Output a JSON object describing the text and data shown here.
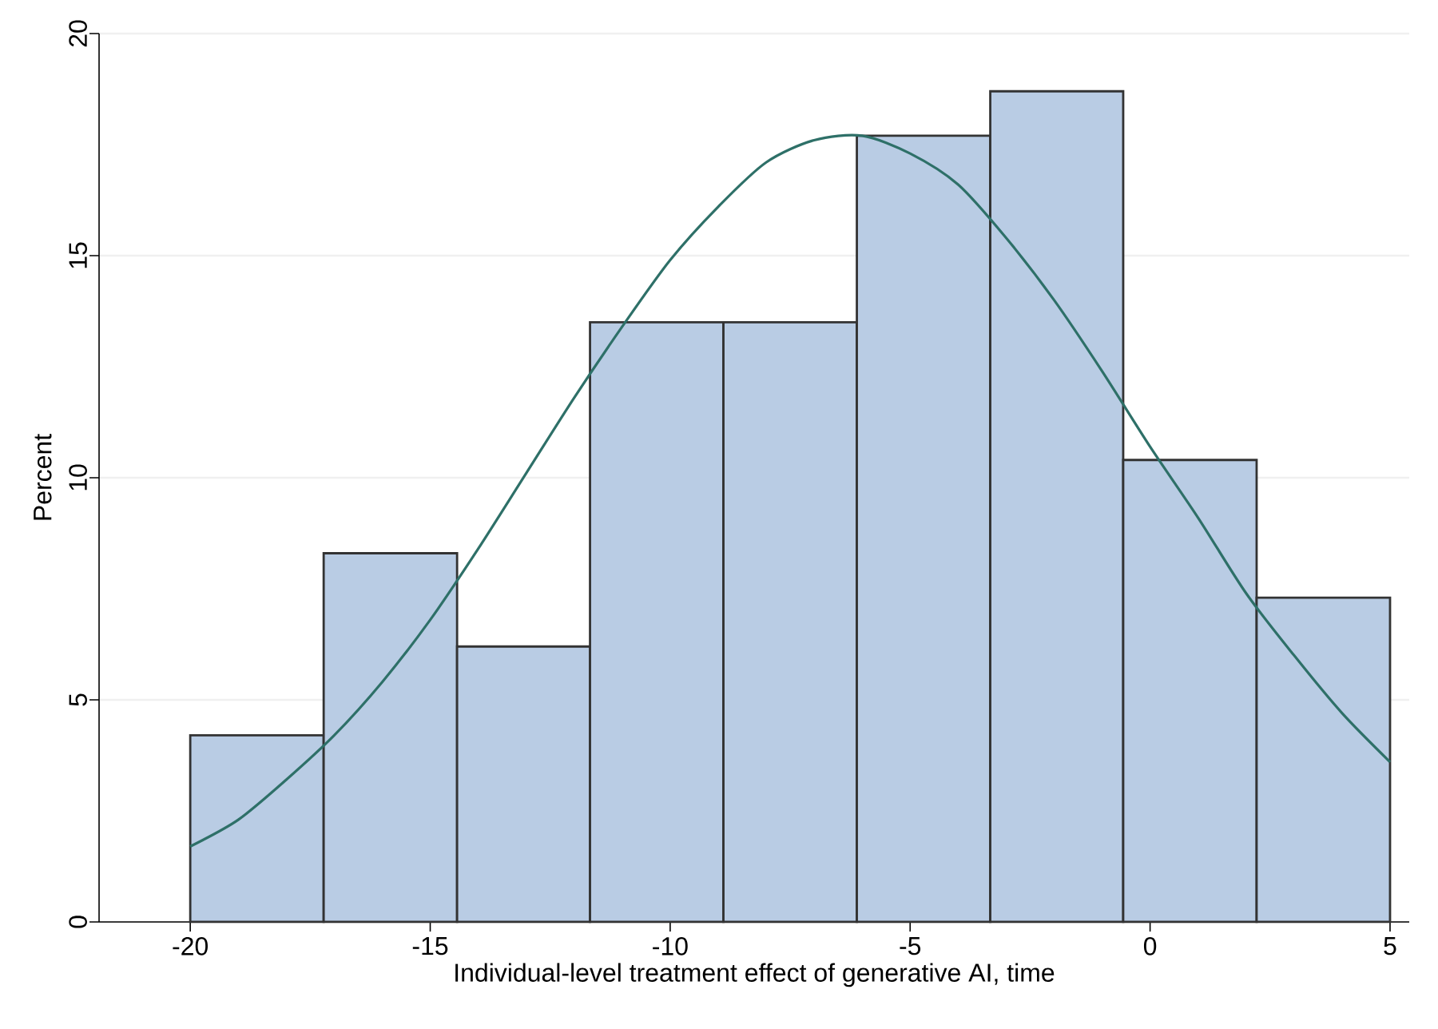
{
  "chart_data": {
    "type": "histogram",
    "xlabel": "Individual-level treatment effect of generative AI, time",
    "ylabel": "Percent",
    "bins": [
      -20,
      -17.22,
      -14.44,
      -11.67,
      -8.89,
      -6.11,
      -3.33,
      -0.56,
      2.22,
      5
    ],
    "values": [
      4.2,
      8.3,
      6.2,
      13.5,
      13.5,
      17.7,
      18.7,
      10.4,
      7.3
    ],
    "color": "#b9cce4",
    "series": [
      {
        "type": "line",
        "color": "#2e7068",
        "x": [
          -20,
          -19,
          -18,
          -17,
          -16,
          -15,
          -14,
          -13,
          -12,
          -11,
          -10,
          -9,
          -8,
          -7,
          -6,
          -5,
          -4,
          -3,
          -2,
          -1,
          0,
          1,
          2,
          3,
          4,
          5
        ],
        "values": [
          1.7,
          2.3,
          3.2,
          4.2,
          5.4,
          6.8,
          8.4,
          10.1,
          11.8,
          13.4,
          14.9,
          16.1,
          17.1,
          17.6,
          17.7,
          17.3,
          16.6,
          15.4,
          14.0,
          12.4,
          10.7,
          9.1,
          7.4,
          6.0,
          4.7,
          3.6
        ]
      }
    ],
    "xlim": [
      -21.9,
      5.4
    ],
    "ylim": [
      0,
      20
    ],
    "xticks": [
      -20,
      -15,
      -10,
      -5,
      0,
      5
    ],
    "yticks": [
      0,
      5,
      10,
      15,
      20
    ],
    "grid": "y"
  }
}
